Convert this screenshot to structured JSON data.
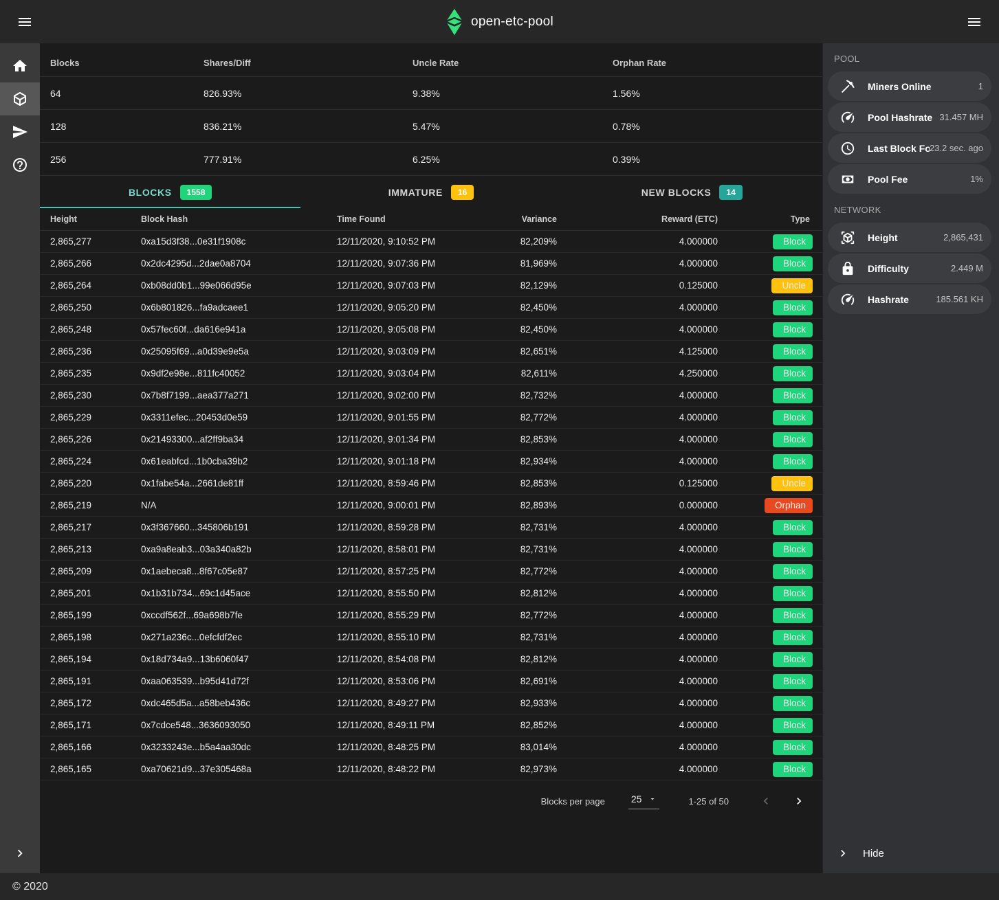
{
  "topbar": {
    "title": "open-etc-pool"
  },
  "colors": {
    "accent_teal": "#4cc2b2",
    "badge_green": "#1fd47a",
    "badge_amber": "#fec10d",
    "badge_teal": "#26a69a",
    "badge_orphan": "#e8491e",
    "logo_green": "#35e17c"
  },
  "stats": {
    "headers": [
      "Blocks",
      "Shares/Diff",
      "Uncle Rate",
      "Orphan Rate"
    ],
    "rows": [
      [
        "64",
        "826.93%",
        "9.38%",
        "1.56%"
      ],
      [
        "128",
        "836.21%",
        "5.47%",
        "0.78%"
      ],
      [
        "256",
        "777.91%",
        "6.25%",
        "0.39%"
      ]
    ]
  },
  "tabs": [
    {
      "label": "BLOCKS",
      "count": "1558",
      "badge_color": "green",
      "active": true
    },
    {
      "label": "IMMATURE",
      "count": "16",
      "badge_color": "amber",
      "active": false
    },
    {
      "label": "NEW BLOCKS",
      "count": "14",
      "badge_color": "teal",
      "active": false
    }
  ],
  "blocks": {
    "headers": [
      "Height",
      "Block Hash",
      "Time Found",
      "Variance",
      "Reward (ETC)",
      "Type"
    ],
    "rows": [
      {
        "height": "2,865,277",
        "hash": "0xa15d3f38...0e31f1908c",
        "time": "12/11/2020, 9:10:52 PM",
        "variance": "82,209%",
        "reward": "4.000000",
        "type": "Block"
      },
      {
        "height": "2,865,266",
        "hash": "0x2dc4295d...2dae0a8704",
        "time": "12/11/2020, 9:07:36 PM",
        "variance": "81,969%",
        "reward": "4.000000",
        "type": "Block"
      },
      {
        "height": "2,865,264",
        "hash": "0xb08dd0b1...99e066d95e",
        "time": "12/11/2020, 9:07:03 PM",
        "variance": "82,129%",
        "reward": "0.125000",
        "type": "Uncle"
      },
      {
        "height": "2,865,250",
        "hash": "0x6b801826...fa9adcaee1",
        "time": "12/11/2020, 9:05:20 PM",
        "variance": "82,450%",
        "reward": "4.000000",
        "type": "Block"
      },
      {
        "height": "2,865,248",
        "hash": "0x57fec60f...da616e941a",
        "time": "12/11/2020, 9:05:08 PM",
        "variance": "82,450%",
        "reward": "4.000000",
        "type": "Block"
      },
      {
        "height": "2,865,236",
        "hash": "0x25095f69...a0d39e9e5a",
        "time": "12/11/2020, 9:03:09 PM",
        "variance": "82,651%",
        "reward": "4.125000",
        "type": "Block"
      },
      {
        "height": "2,865,235",
        "hash": "0x9df2e98e...811fc40052",
        "time": "12/11/2020, 9:03:04 PM",
        "variance": "82,611%",
        "reward": "4.250000",
        "type": "Block"
      },
      {
        "height": "2,865,230",
        "hash": "0x7b8f7199...aea377a271",
        "time": "12/11/2020, 9:02:00 PM",
        "variance": "82,732%",
        "reward": "4.000000",
        "type": "Block"
      },
      {
        "height": "2,865,229",
        "hash": "0x3311efec...20453d0e59",
        "time": "12/11/2020, 9:01:55 PM",
        "variance": "82,772%",
        "reward": "4.000000",
        "type": "Block"
      },
      {
        "height": "2,865,226",
        "hash": "0x21493300...af2ff9ba34",
        "time": "12/11/2020, 9:01:34 PM",
        "variance": "82,853%",
        "reward": "4.000000",
        "type": "Block"
      },
      {
        "height": "2,865,224",
        "hash": "0x61eabfcd...1b0cba39b2",
        "time": "12/11/2020, 9:01:18 PM",
        "variance": "82,934%",
        "reward": "4.000000",
        "type": "Block"
      },
      {
        "height": "2,865,220",
        "hash": "0x1fabe54a...2661de81ff",
        "time": "12/11/2020, 8:59:46 PM",
        "variance": "82,853%",
        "reward": "0.125000",
        "type": "Uncle"
      },
      {
        "height": "2,865,219",
        "hash": "N/A",
        "time": "12/11/2020, 9:00:01 PM",
        "variance": "82,893%",
        "reward": "0.000000",
        "type": "Orphan"
      },
      {
        "height": "2,865,217",
        "hash": "0x3f367660...345806b191",
        "time": "12/11/2020, 8:59:28 PM",
        "variance": "82,731%",
        "reward": "4.000000",
        "type": "Block"
      },
      {
        "height": "2,865,213",
        "hash": "0xa9a8eab3...03a340a82b",
        "time": "12/11/2020, 8:58:01 PM",
        "variance": "82,731%",
        "reward": "4.000000",
        "type": "Block"
      },
      {
        "height": "2,865,209",
        "hash": "0x1aebeca8...8f67c05e87",
        "time": "12/11/2020, 8:57:25 PM",
        "variance": "82,772%",
        "reward": "4.000000",
        "type": "Block"
      },
      {
        "height": "2,865,201",
        "hash": "0x1b31b734...69c1d45ace",
        "time": "12/11/2020, 8:55:50 PM",
        "variance": "82,812%",
        "reward": "4.000000",
        "type": "Block"
      },
      {
        "height": "2,865,199",
        "hash": "0xccdf562f...69a698b7fe",
        "time": "12/11/2020, 8:55:29 PM",
        "variance": "82,772%",
        "reward": "4.000000",
        "type": "Block"
      },
      {
        "height": "2,865,198",
        "hash": "0x271a236c...0efcfdf2ec",
        "time": "12/11/2020, 8:55:10 PM",
        "variance": "82,731%",
        "reward": "4.000000",
        "type": "Block"
      },
      {
        "height": "2,865,194",
        "hash": "0x18d734a9...13b6060f47",
        "time": "12/11/2020, 8:54:08 PM",
        "variance": "82,812%",
        "reward": "4.000000",
        "type": "Block"
      },
      {
        "height": "2,865,191",
        "hash": "0xaa063539...b95d41d72f",
        "time": "12/11/2020, 8:53:06 PM",
        "variance": "82,691%",
        "reward": "4.000000",
        "type": "Block"
      },
      {
        "height": "2,865,172",
        "hash": "0xdc465d5a...a58beb436c",
        "time": "12/11/2020, 8:49:27 PM",
        "variance": "82,933%",
        "reward": "4.000000",
        "type": "Block"
      },
      {
        "height": "2,865,171",
        "hash": "0x7cdce548...3636093050",
        "time": "12/11/2020, 8:49:11 PM",
        "variance": "82,852%",
        "reward": "4.000000",
        "type": "Block"
      },
      {
        "height": "2,865,166",
        "hash": "0x3233243e...b5a4aa30dc",
        "time": "12/11/2020, 8:48:25 PM",
        "variance": "83,014%",
        "reward": "4.000000",
        "type": "Block"
      },
      {
        "height": "2,865,165",
        "hash": "0xa70621d9...37e305468a",
        "time": "12/11/2020, 8:48:22 PM",
        "variance": "82,973%",
        "reward": "4.000000",
        "type": "Block"
      }
    ]
  },
  "pagination": {
    "label": "Blocks per page",
    "per_page": "25",
    "range": "1-25 of 50"
  },
  "pool": {
    "title": "POOL",
    "items": [
      {
        "icon": "pickaxe-icon",
        "label": "Miners Online",
        "value": "1"
      },
      {
        "icon": "gauge-icon",
        "label": "Pool Hashrate",
        "value": "31.457 MH"
      },
      {
        "icon": "clock-icon",
        "label": "Last Block Fo…",
        "value": "23.2 sec. ago"
      },
      {
        "icon": "banknote-icon",
        "label": "Pool Fee",
        "value": "1%"
      }
    ]
  },
  "network": {
    "title": "NETWORK",
    "items": [
      {
        "icon": "cube-scan-icon",
        "label": "Height",
        "value": "2,865,431"
      },
      {
        "icon": "lock-icon",
        "label": "Difficulty",
        "value": "2.449 M"
      },
      {
        "icon": "gauge-icon",
        "label": "Hashrate",
        "value": "185.561 KH"
      }
    ]
  },
  "sidebar_toggle": {
    "label": "Hide"
  },
  "footer": {
    "copyright": "© 2020"
  }
}
